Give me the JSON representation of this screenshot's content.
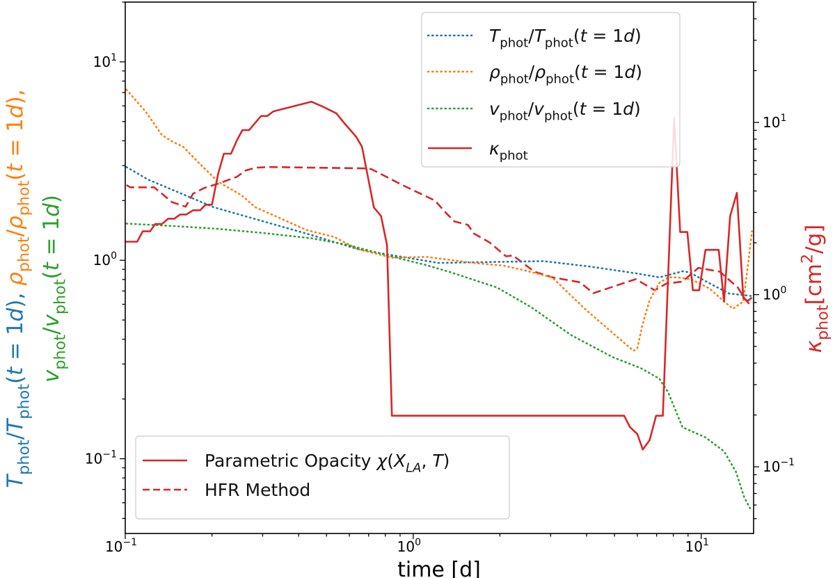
{
  "chart_data": {
    "type": "line",
    "xscale": "log",
    "yscale": "log",
    "xlabel": "time [d]",
    "xlim": [
      0.1,
      15.2
    ],
    "ylim_left": [
      0.042,
      20
    ],
    "ylim_right": [
      0.041,
      50
    ],
    "x_ticks": [
      {
        "value": 0.1,
        "base": "10",
        "exp": "−1"
      },
      {
        "value": 1,
        "base": "10",
        "exp": "0"
      },
      {
        "value": 10,
        "base": "10",
        "exp": "1"
      }
    ],
    "y_left_ticks": [
      {
        "value": 0.1,
        "base": "10",
        "exp": "−1"
      },
      {
        "value": 1,
        "base": "10",
        "exp": "0"
      },
      {
        "value": 10,
        "base": "10",
        "exp": "1"
      }
    ],
    "y_right_ticks": [
      {
        "value": 0.1,
        "base": "10",
        "exp": "−1"
      },
      {
        "value": 1,
        "base": "10",
        "exp": "0"
      },
      {
        "value": 10,
        "base": "10",
        "exp": "1"
      }
    ],
    "ylabel_left": [
      {
        "line": 0,
        "color": "#1f77b4",
        "parts": [
          {
            "t": "T",
            "s": "i"
          },
          {
            "t": "phot",
            "s": "sub"
          },
          {
            "t": "/",
            "s": "n"
          },
          {
            "t": "T",
            "s": "i"
          },
          {
            "t": "phot",
            "s": "sub"
          },
          {
            "t": "(",
            "s": "n"
          },
          {
            "t": "t",
            "s": "i"
          },
          {
            "t": " = 1",
            "s": "n"
          },
          {
            "t": "d",
            "s": "i"
          },
          {
            "t": "),  ",
            "s": "n"
          }
        ]
      },
      {
        "line": 0,
        "color": "#ff7f0e",
        "parts": [
          {
            "t": "ρ",
            "s": "i"
          },
          {
            "t": "phot",
            "s": "sub"
          },
          {
            "t": "/",
            "s": "n"
          },
          {
            "t": "ρ",
            "s": "i"
          },
          {
            "t": "phot",
            "s": "sub"
          },
          {
            "t": "(",
            "s": "n"
          },
          {
            "t": "t",
            "s": "i"
          },
          {
            "t": " = 1",
            "s": "n"
          },
          {
            "t": "d",
            "s": "i"
          },
          {
            "t": "),",
            "s": "n"
          }
        ]
      },
      {
        "line": 1,
        "color": "#2ca02c",
        "parts": [
          {
            "t": "v",
            "s": "i"
          },
          {
            "t": "phot",
            "s": "sub"
          },
          {
            "t": "/",
            "s": "n"
          },
          {
            "t": "v",
            "s": "i"
          },
          {
            "t": "phot",
            "s": "sub"
          },
          {
            "t": "(",
            "s": "n"
          },
          {
            "t": "t",
            "s": "i"
          },
          {
            "t": " = 1",
            "s": "n"
          },
          {
            "t": "d",
            "s": "i"
          },
          {
            "t": ")",
            "s": "n"
          }
        ]
      }
    ],
    "ylabel_right": {
      "color": "#d62728",
      "parts": [
        {
          "t": "κ",
          "s": "i"
        },
        {
          "t": "phot",
          "s": "sub"
        },
        {
          "t": "[cm",
          "s": "n"
        },
        {
          "t": "2",
          "s": "sup"
        },
        {
          "t": "/g]",
          "s": "n"
        }
      ]
    },
    "legend_top_right": [
      {
        "series": "T",
        "parts": [
          {
            "t": "T",
            "s": "i"
          },
          {
            "t": "phot",
            "s": "sub"
          },
          {
            "t": "/",
            "s": "n"
          },
          {
            "t": "T",
            "s": "i"
          },
          {
            "t": "phot",
            "s": "sub"
          },
          {
            "t": "(",
            "s": "n"
          },
          {
            "t": "t",
            "s": "i"
          },
          {
            "t": " = 1",
            "s": "n"
          },
          {
            "t": "d",
            "s": "i"
          },
          {
            "t": ")",
            "s": "n"
          }
        ]
      },
      {
        "series": "rho",
        "parts": [
          {
            "t": "ρ",
            "s": "i"
          },
          {
            "t": "phot",
            "s": "sub"
          },
          {
            "t": "/",
            "s": "n"
          },
          {
            "t": "ρ",
            "s": "i"
          },
          {
            "t": "phot",
            "s": "sub"
          },
          {
            "t": "(",
            "s": "n"
          },
          {
            "t": "t",
            "s": "i"
          },
          {
            "t": " = 1",
            "s": "n"
          },
          {
            "t": "d",
            "s": "i"
          },
          {
            "t": ")",
            "s": "n"
          }
        ]
      },
      {
        "series": "v",
        "parts": [
          {
            "t": "v",
            "s": "i"
          },
          {
            "t": "phot",
            "s": "sub"
          },
          {
            "t": "/",
            "s": "n"
          },
          {
            "t": "v",
            "s": "i"
          },
          {
            "t": "phot",
            "s": "sub"
          },
          {
            "t": "(",
            "s": "n"
          },
          {
            "t": "t",
            "s": "i"
          },
          {
            "t": " = 1",
            "s": "n"
          },
          {
            "t": "d",
            "s": "i"
          },
          {
            "t": ")",
            "s": "n"
          }
        ]
      },
      {
        "series": "kappa_param",
        "parts": [
          {
            "t": "κ",
            "s": "i"
          },
          {
            "t": "phot",
            "s": "sub"
          }
        ]
      }
    ],
    "legend_bottom_left": [
      {
        "series": "kappa_param",
        "parts": [
          {
            "t": "Parametric Opacity ",
            "s": "n"
          },
          {
            "t": "χ",
            "s": "i"
          },
          {
            "t": "(",
            "s": "n"
          },
          {
            "t": "X",
            "s": "i"
          },
          {
            "t": "LA",
            "s": "subi"
          },
          {
            "t": ", ",
            "s": "n"
          },
          {
            "t": "T",
            "s": "i"
          },
          {
            "t": ")",
            "s": "n"
          }
        ]
      },
      {
        "series": "kappa_hfr",
        "parts": [
          {
            "t": "HFR Method",
            "s": "n"
          }
        ]
      }
    ],
    "series": [
      {
        "id": "T",
        "name": "T_phot/T_phot(t=1d)",
        "axis": "left",
        "color": "#1f77b4",
        "style": "dotted",
        "x": [
          0.101,
          0.12,
          0.203,
          0.443,
          0.639,
          0.816,
          1.22,
          2.83,
          4.1,
          5.93,
          7.16,
          8.61,
          9.1,
          10.35,
          12.5,
          15.0
        ],
        "y": [
          2.95,
          2.55,
          1.85,
          1.34,
          1.14,
          1.07,
          0.97,
          0.99,
          0.93,
          0.86,
          0.82,
          0.88,
          0.87,
          0.785,
          0.68,
          0.66
        ]
      },
      {
        "id": "rho",
        "name": "rho_phot/rho_phot(t=1d)",
        "axis": "left",
        "color": "#ff7f0e",
        "style": "dotted",
        "x": [
          0.101,
          0.118,
          0.134,
          0.145,
          0.159,
          0.182,
          0.21,
          0.254,
          0.283,
          0.335,
          0.426,
          0.532,
          0.639,
          0.843,
          1.11,
          1.62,
          2.06,
          2.43,
          3.04,
          3.4,
          3.94,
          4.93,
          5.82,
          6.0,
          6.27,
          6.62,
          7.16,
          7.69,
          8.27,
          9.25,
          10.7,
          12.0,
          12.9,
          14.0,
          14.5,
          15.0
        ],
        "y": [
          7.24,
          5.59,
          4.28,
          3.98,
          3.73,
          3.05,
          2.49,
          2.12,
          1.85,
          1.66,
          1.42,
          1.31,
          1.14,
          1.03,
          1.04,
          0.97,
          0.94,
          0.89,
          0.82,
          0.7,
          0.57,
          0.43,
          0.35,
          0.36,
          0.48,
          0.63,
          0.77,
          0.82,
          0.82,
          0.8,
          0.72,
          0.62,
          0.57,
          0.62,
          0.92,
          1.4
        ]
      },
      {
        "id": "v",
        "name": "v_phot/v_phot(t=1d)",
        "axis": "left",
        "color": "#2ca02c",
        "style": "dotted",
        "x": [
          0.101,
          0.145,
          0.21,
          0.305,
          0.443,
          0.585,
          0.773,
          0.925,
          1.11,
          1.35,
          1.95,
          2.57,
          3.53,
          4.93,
          6.17,
          7.16,
          7.69,
          8.61,
          10.35,
          12.0,
          13.2,
          14.1,
          14.9
        ],
        "y": [
          1.53,
          1.49,
          1.44,
          1.37,
          1.29,
          1.2,
          1.08,
          1.01,
          0.945,
          0.87,
          0.73,
          0.58,
          0.42,
          0.325,
          0.286,
          0.253,
          0.215,
          0.144,
          0.128,
          0.109,
          0.086,
          0.064,
          0.055
        ]
      },
      {
        "id": "kappa_param",
        "name": "Parametric Opacity",
        "axis": "right",
        "color": "#d62728",
        "style": "solid",
        "x": [
          0.1,
          0.11,
          0.115,
          0.122,
          0.127,
          0.134,
          0.141,
          0.148,
          0.155,
          0.163,
          0.172,
          0.182,
          0.19,
          0.2,
          0.21,
          0.22,
          0.233,
          0.244,
          0.255,
          0.269,
          0.296,
          0.311,
          0.327,
          0.443,
          0.483,
          0.541,
          0.571,
          0.635,
          0.664,
          0.73,
          0.773,
          0.811,
          0.843,
          5.4,
          5.66,
          6.0,
          6.27,
          6.62,
          6.97,
          7.36,
          8.05,
          8.45,
          8.95,
          9.35,
          9.84,
          10.35,
          11.5,
          12.0,
          12.6,
          13.3,
          14.0,
          14.5,
          15.0
        ],
        "y": [
          2.03,
          2.03,
          2.33,
          2.33,
          2.57,
          2.57,
          2.76,
          2.76,
          2.92,
          2.92,
          3.09,
          3.09,
          3.33,
          3.33,
          5.01,
          6.58,
          6.58,
          7.85,
          9.02,
          9.02,
          10.9,
          10.9,
          11.6,
          13.2,
          12.4,
          11.3,
          10.1,
          8.22,
          7.21,
          3.21,
          2.86,
          1.94,
          0.198,
          0.198,
          0.17,
          0.155,
          0.126,
          0.143,
          0.198,
          0.198,
          10.6,
          2.31,
          2.31,
          1.06,
          1.06,
          1.82,
          1.82,
          0.912,
          2.86,
          3.9,
          0.955,
          0.92,
          0.96
        ]
      },
      {
        "id": "kappa_hfr",
        "name": "HFR Method",
        "axis": "right",
        "color": "#d62728",
        "style": "dashed",
        "x": [
          0.101,
          0.104,
          0.126,
          0.134,
          0.145,
          0.162,
          0.172,
          0.188,
          0.21,
          0.244,
          0.262,
          0.283,
          0.317,
          0.676,
          0.715,
          0.927,
          1.19,
          1.28,
          1.39,
          1.55,
          1.62,
          1.84,
          2.1,
          2.22,
          2.63,
          3.04,
          3.79,
          4.22,
          5.93,
          6.89,
          7.57,
          8.61,
          9.77,
          11.6,
          13.4,
          14.2,
          15.0
        ],
        "y": [
          4.33,
          4.2,
          4.2,
          3.86,
          3.45,
          3.24,
          3.86,
          4.16,
          4.41,
          4.83,
          5.26,
          5.46,
          5.51,
          5.41,
          5.36,
          4.29,
          3.52,
          3.06,
          2.66,
          2.54,
          2.27,
          2.01,
          1.67,
          1.69,
          1.36,
          1.26,
          1.18,
          1.02,
          1.23,
          1.06,
          1.16,
          1.19,
          1.43,
          1.36,
          1.1,
          0.94,
          0.85
        ]
      }
    ]
  }
}
